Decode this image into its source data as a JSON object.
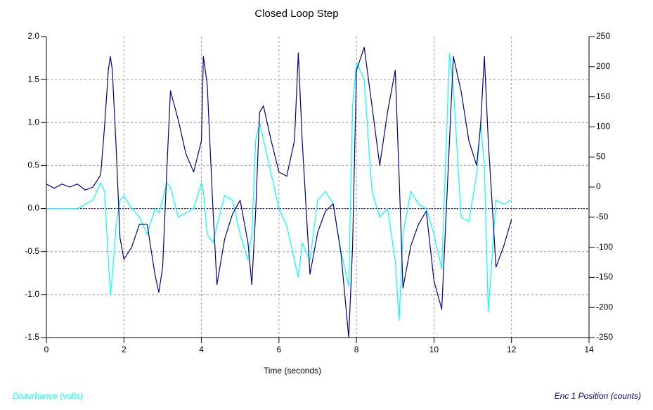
{
  "chart_data": {
    "type": "line",
    "title": "Closed Loop Step",
    "x_label": "Time (seconds)",
    "x": [
      0,
      0.2,
      0.4,
      0.6,
      0.8,
      1.0,
      1.2,
      1.4,
      1.5,
      1.6,
      1.65,
      1.7,
      1.8,
      1.9,
      2.0,
      2.2,
      2.4,
      2.6,
      2.8,
      2.9,
      3.0,
      3.1,
      3.2,
      3.4,
      3.6,
      3.8,
      4.0,
      4.05,
      4.15,
      4.3,
      4.4,
      4.6,
      4.8,
      5.0,
      5.2,
      5.3,
      5.4,
      5.5,
      5.6,
      5.8,
      6.0,
      6.2,
      6.4,
      6.5,
      6.6,
      6.8,
      7.0,
      7.2,
      7.4,
      7.6,
      7.8,
      7.9,
      8.0,
      8.2,
      8.4,
      8.6,
      8.8,
      9.0,
      9.1,
      9.2,
      9.4,
      9.6,
      9.8,
      10.0,
      10.2,
      10.4,
      10.5,
      10.7,
      10.9,
      11.1,
      11.2,
      11.3,
      11.4,
      11.6,
      11.8,
      12.0
    ],
    "series": [
      {
        "name": "Disturbance (volts)",
        "color": "#00ffff",
        "axis": "y",
        "values": [
          0,
          0,
          0,
          0,
          0,
          0.05,
          0.1,
          0.3,
          0.2,
          -0.6,
          -1.0,
          -0.8,
          -0.2,
          0.1,
          0.15,
          0.0,
          -0.1,
          -0.3,
          0.0,
          -0.05,
          0.1,
          0.3,
          0.25,
          -0.1,
          -0.05,
          0.0,
          0.3,
          0.2,
          -0.3,
          -0.4,
          -0.2,
          0.15,
          0.1,
          -0.3,
          -0.6,
          -0.3,
          0.8,
          1.0,
          0.8,
          0.4,
          0.0,
          -0.2,
          -0.6,
          -0.8,
          -0.4,
          -0.6,
          0.1,
          0.2,
          0.05,
          -0.5,
          -0.9,
          1.2,
          1.7,
          1.5,
          0.2,
          -0.1,
          0.0,
          -0.6,
          -1.3,
          -0.3,
          0.2,
          0.05,
          0.0,
          -0.3,
          -0.7,
          1.8,
          1.4,
          -0.1,
          -0.15,
          0.4,
          1.0,
          0.5,
          -1.2,
          0.1,
          0.05,
          0.1
        ]
      },
      {
        "name": "Enc 1 Position (counts)",
        "color": "#00008b",
        "axis": "y2",
        "values": [
          5,
          -2,
          5,
          0,
          5,
          -5,
          0,
          20,
          100,
          195,
          217,
          195,
          65,
          -85,
          -120,
          -100,
          -62,
          -62,
          -145,
          -175,
          -133,
          18,
          160,
          112,
          55,
          25,
          77,
          217,
          170,
          -40,
          -162,
          -86,
          -45,
          -22,
          -92,
          -162,
          -40,
          124,
          135,
          77,
          25,
          18,
          77,
          223,
          77,
          -145,
          -75,
          -40,
          -28,
          -110,
          -250,
          -98,
          194,
          232,
          135,
          36,
          124,
          194,
          18,
          -168,
          -98,
          -62,
          -40,
          -156,
          -203,
          77,
          217,
          159,
          77,
          36,
          100,
          217,
          77,
          -133,
          -98,
          -54
        ]
      }
    ],
    "xlim": [
      0,
      14
    ],
    "xticks": [
      0,
      2,
      4,
      6,
      8,
      10,
      12,
      14
    ],
    "ylim": [
      -1.5,
      2.0
    ],
    "yticks": [
      {
        "value": -1.5,
        "label": "-1.5"
      },
      {
        "value": -1.0,
        "label": "-1.0"
      },
      {
        "value": -0.5,
        "label": "-0.5"
      },
      {
        "value": 0.0,
        "label": "0.0"
      },
      {
        "value": 0.5,
        "label": "0.5"
      },
      {
        "value": 1.0,
        "label": "1.0"
      },
      {
        "value": 1.5,
        "label": "1.5"
      },
      {
        "value": 2.0,
        "label": "2.0"
      }
    ],
    "y2lim": [
      -250,
      250
    ],
    "y2ticks": [
      -250,
      -200,
      -150,
      -100,
      -50,
      0,
      50,
      100,
      150,
      200,
      250
    ],
    "grid": true,
    "reference_line": {
      "y": 0,
      "style": "dotted"
    }
  }
}
